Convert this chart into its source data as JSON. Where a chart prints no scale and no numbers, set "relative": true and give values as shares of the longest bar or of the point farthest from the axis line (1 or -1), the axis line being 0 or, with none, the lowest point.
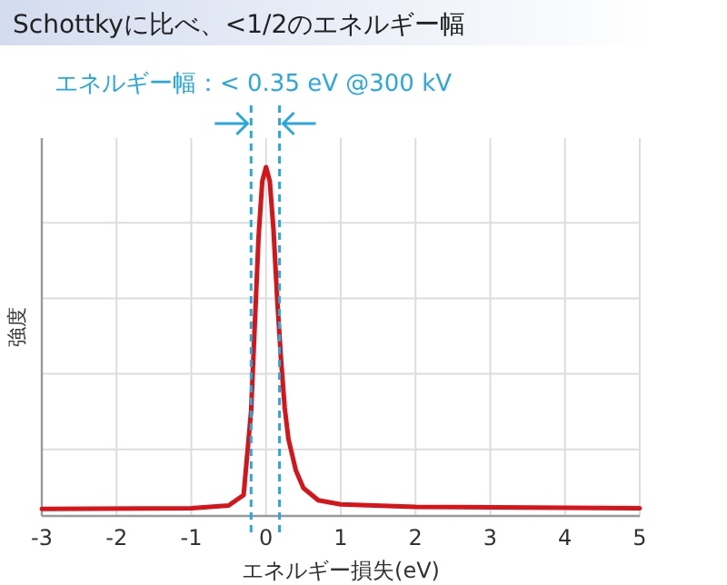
{
  "chart_data": {
    "type": "line",
    "title": "Schottkyに比べ、<1/2のエネルギー幅",
    "xlabel": "エネルギー損失(eV)",
    "ylabel": "強度",
    "annotations": [
      "エネルギー幅：< 0.35 eV @300 kV"
    ],
    "x": [
      -3,
      -1,
      -0.5,
      -0.3,
      -0.2,
      -0.15,
      -0.1,
      -0.05,
      0,
      0.05,
      0.1,
      0.15,
      0.2,
      0.25,
      0.3,
      0.4,
      0.5,
      0.7,
      1,
      2,
      5
    ],
    "series": [
      {
        "color": "#d7141a",
        "values": [
          0.02,
          0.022,
          0.03,
          0.06,
          0.3,
          0.55,
          0.8,
          0.96,
          1,
          0.96,
          0.82,
          0.62,
          0.45,
          0.31,
          0.22,
          0.13,
          0.08,
          0.045,
          0.033,
          0.026,
          0.022
        ]
      }
    ],
    "relative": true,
    "xlim": [
      -3,
      5
    ],
    "xticks": [
      -3,
      -2,
      -1,
      0,
      1,
      2,
      3,
      4,
      5
    ],
    "grid": true,
    "line_style": "solid",
    "ref_lines": [
      {
        "axis": "x",
        "value": -0.2,
        "color": "#29a8e0",
        "line_style": "dashed"
      },
      {
        "axis": "x",
        "value": 0.18,
        "color": "#29a8e0",
        "line_style": "dashed"
      }
    ]
  }
}
